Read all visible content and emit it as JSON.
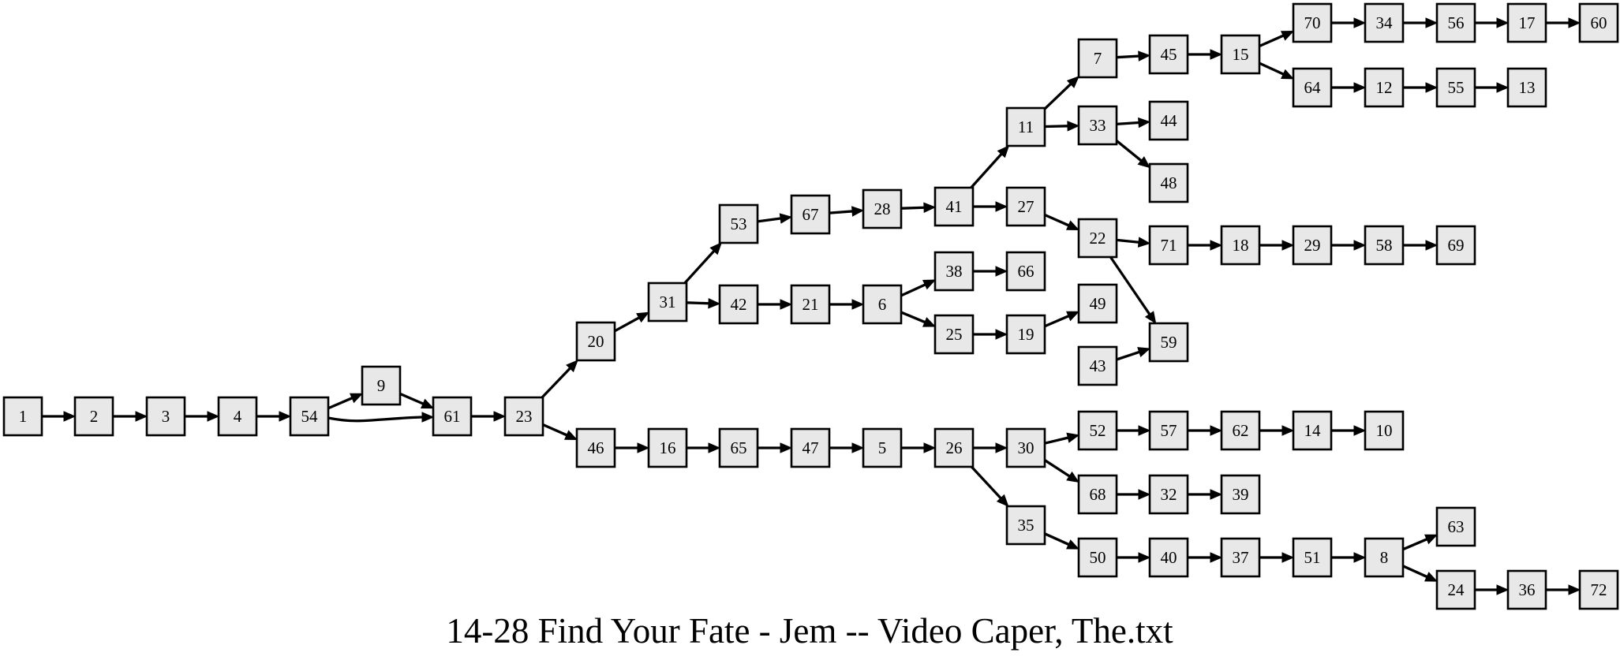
{
  "caption": "14-28 Find Your Fate - Jem -- Video Caper, The.txt",
  "node_fill": "#e8e8e8",
  "edge_color": "#000000",
  "nodes": [
    "1",
    "2",
    "3",
    "4",
    "54",
    "9",
    "61",
    "23",
    "20",
    "46",
    "31",
    "53",
    "42",
    "67",
    "28",
    "41",
    "21",
    "6",
    "38",
    "66",
    "25",
    "19",
    "49",
    "11",
    "27",
    "7",
    "33",
    "44",
    "48",
    "45",
    "15",
    "70",
    "64",
    "34",
    "56",
    "17",
    "60",
    "12",
    "55",
    "13",
    "22",
    "71",
    "59",
    "43",
    "18",
    "29",
    "58",
    "69",
    "16",
    "65",
    "47",
    "5",
    "26",
    "30",
    "35",
    "52",
    "68",
    "57",
    "62",
    "14",
    "10",
    "32",
    "39",
    "50",
    "40",
    "37",
    "51",
    "8",
    "63",
    "24",
    "36",
    "72"
  ],
  "edges": [
    [
      "1",
      "2"
    ],
    [
      "2",
      "3"
    ],
    [
      "3",
      "4"
    ],
    [
      "4",
      "54"
    ],
    [
      "54",
      "9"
    ],
    [
      "54",
      "61"
    ],
    [
      "9",
      "61"
    ],
    [
      "61",
      "23"
    ],
    [
      "23",
      "20"
    ],
    [
      "23",
      "46"
    ],
    [
      "20",
      "31"
    ],
    [
      "31",
      "53"
    ],
    [
      "31",
      "42"
    ],
    [
      "53",
      "67"
    ],
    [
      "67",
      "28"
    ],
    [
      "28",
      "41"
    ],
    [
      "41",
      "11"
    ],
    [
      "41",
      "27"
    ],
    [
      "11",
      "7"
    ],
    [
      "11",
      "33"
    ],
    [
      "7",
      "45"
    ],
    [
      "45",
      "15"
    ],
    [
      "15",
      "70"
    ],
    [
      "15",
      "64"
    ],
    [
      "70",
      "34"
    ],
    [
      "34",
      "56"
    ],
    [
      "56",
      "17"
    ],
    [
      "17",
      "60"
    ],
    [
      "64",
      "12"
    ],
    [
      "12",
      "55"
    ],
    [
      "55",
      "13"
    ],
    [
      "33",
      "44"
    ],
    [
      "33",
      "48"
    ],
    [
      "27",
      "22"
    ],
    [
      "22",
      "71"
    ],
    [
      "22",
      "59"
    ],
    [
      "43",
      "59"
    ],
    [
      "71",
      "18"
    ],
    [
      "18",
      "29"
    ],
    [
      "29",
      "58"
    ],
    [
      "58",
      "69"
    ],
    [
      "42",
      "21"
    ],
    [
      "21",
      "6"
    ],
    [
      "6",
      "38"
    ],
    [
      "6",
      "25"
    ],
    [
      "38",
      "66"
    ],
    [
      "25",
      "19"
    ],
    [
      "19",
      "49"
    ],
    [
      "46",
      "16"
    ],
    [
      "16",
      "65"
    ],
    [
      "65",
      "47"
    ],
    [
      "47",
      "5"
    ],
    [
      "5",
      "26"
    ],
    [
      "26",
      "30"
    ],
    [
      "26",
      "35"
    ],
    [
      "30",
      "52"
    ],
    [
      "30",
      "68"
    ],
    [
      "52",
      "57"
    ],
    [
      "57",
      "62"
    ],
    [
      "62",
      "14"
    ],
    [
      "14",
      "10"
    ],
    [
      "68",
      "32"
    ],
    [
      "32",
      "39"
    ],
    [
      "35",
      "50"
    ],
    [
      "50",
      "40"
    ],
    [
      "40",
      "37"
    ],
    [
      "37",
      "51"
    ],
    [
      "51",
      "8"
    ],
    [
      "8",
      "63"
    ],
    [
      "8",
      "24"
    ],
    [
      "24",
      "36"
    ],
    [
      "36",
      "72"
    ]
  ]
}
